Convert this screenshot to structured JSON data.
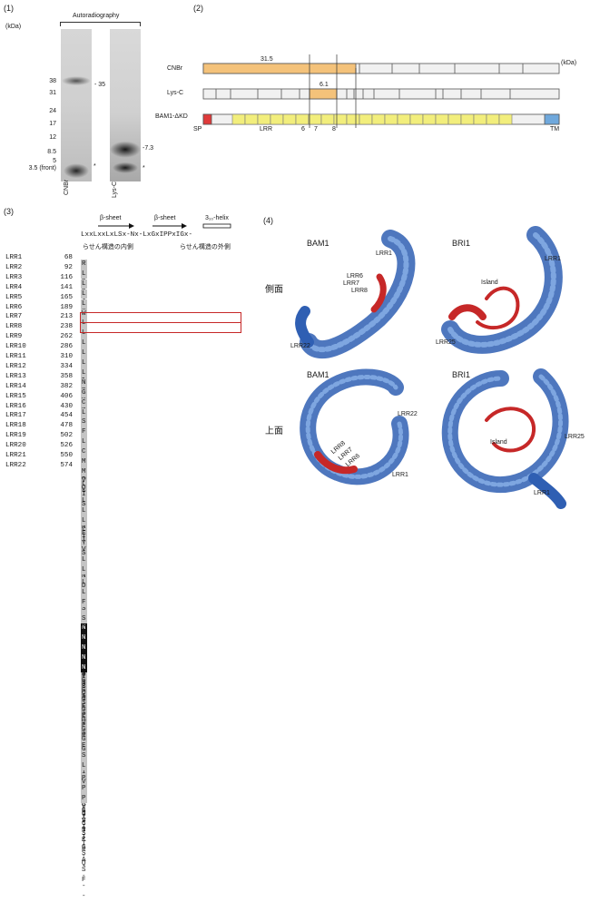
{
  "panel1": {
    "label": "(1)",
    "header": "Autoradiography",
    "unit": "(kDa)",
    "markers": [
      "38",
      "31",
      "24",
      "17",
      "12",
      "8.5",
      "5",
      "3.5 (front)"
    ],
    "lane_labels": [
      "CNBr",
      "Lys-C"
    ],
    "band_labels": [
      "35",
      "7.3"
    ],
    "asterisk": "*"
  },
  "panel2": {
    "label": "(2)",
    "unit": "(kDa)",
    "rows": [
      "CNBr",
      "Lys-C",
      "BAM1-ΔKD"
    ],
    "fragment_labels": [
      "31.5",
      "6.1"
    ],
    "domain_labels": [
      "SP",
      "LRR",
      "6",
      "7",
      "8",
      "TM"
    ],
    "colors": {
      "cnbr_fragment": "#f4c27a",
      "lrr": "#f2ee7c",
      "sp": "#e03a3a",
      "tm": "#6fa8dc",
      "bar": "#f1f1f1"
    }
  },
  "panel3": {
    "label": "(3)",
    "features": [
      "β-sheet",
      "β-sheet",
      "3₁₀-helix"
    ],
    "consensus": "LxxLxxLxLSx-Nx-LxGxIPPxIGx-",
    "jp_left": "らせん構造の内側",
    "jp_right": "らせん構造の外側",
    "rows": [
      {
        "name": "LRR1",
        "num": "68",
        "seq": "RRHVTSLDLSGLN-LSGTLSPDVSH--"
      },
      {
        "name": "LRR2",
        "num": "92",
        "seq": "LRLLQNLSLAE-NL-ISGPIPPEISS-"
      },
      {
        "name": "LRR3",
        "num": "116",
        "seq": "LSGLRHLNLSN-NV-FNGSFPDEISSG"
      },
      {
        "name": "LRR4",
        "num": "141",
        "seq": "LVNLRVLDVYN-NN-LTGDLPVSVTN-"
      },
      {
        "name": "LRR5",
        "num": "165",
        "seq": "LTQLRHLHLGG-NY-FAGKIPPSYGS-"
      },
      {
        "name": "LRR6",
        "num": "189",
        "seq": "WPVIEYLAVSG-NE-LVGKIPPEIGN-"
      },
      {
        "name": "LRR7",
        "num": "213",
        "seq": "LTTLRELYIGYYNAFEDG-LPPEIGN-"
      },
      {
        "name": "LRR8",
        "num": "238",
        "seq": "LSELVRFD-GA-NCGLTGEIPPEIGK-"
      },
      {
        "name": "LRR9",
        "num": "262",
        "seq": "LQKLDTLFLQV-NV-FSGPLTWELGT-"
      },
      {
        "name": "LRR10",
        "num": "286",
        "seq": "LSSLKSMDLSN-NM-FTGEIPASFAE-"
      },
      {
        "name": "LRR11",
        "num": "310",
        "seq": "LKNLTLLNLFR-NK-LHGEIPEFIGD-"
      },
      {
        "name": "LRR12",
        "num": "334",
        "seq": "LPELEVLQLWE-NN-FTGSIPQKLGE-"
      },
      {
        "name": "LRR13",
        "num": "358",
        "seq": "NGKLNLVDLSS-NK-LTGTLPPNMCS-"
      },
      {
        "name": "LRR14",
        "num": "382",
        "seq": "GNKLETLITLG-NF-LFGSIPDSLGK-"
      },
      {
        "name": "LRR15",
        "num": "406",
        "seq": "CESLTRIRMGE-NF-LNGSIPKGLFG-"
      },
      {
        "name": "LRR16",
        "num": "430",
        "seq": "LPKLTQVELQD-NY-LSGELPVAGGV-"
      },
      {
        "name": "LRR17",
        "num": "454",
        "seq": "SVNLGQISLSN-NQ-LSGPLPPAIGN-"
      },
      {
        "name": "LRR18",
        "num": "478",
        "seq": "FTGVQKLLLDG-NK-FQGPIPSEVGK-"
      },
      {
        "name": "LRR19",
        "num": "502",
        "seq": "LQQLSKIDFSH-NL-FSGRIAPEISR-"
      },
      {
        "name": "LRR20",
        "num": "526",
        "seq": "CKLLTFVDLSR-NE-LSGEIPNEITA-"
      },
      {
        "name": "LRR21",
        "num": "550",
        "seq": "MKILNYLNLSR-NH-LVGSIPGSISS-"
      },
      {
        "name": "LRR22",
        "num": "574",
        "seq": "MQSLTSLDFSY-NN-LSGLVPGTGQF-"
      }
    ]
  },
  "panel4": {
    "label": "(4)",
    "side_label": "側面",
    "top_label": "上面",
    "structures": [
      "BAM1",
      "BRI1",
      "BAM1",
      "BRI1"
    ],
    "annotations": [
      "LRR1",
      "LRR6",
      "LRR7",
      "LRR8",
      "LRR22",
      "LRR1",
      "Island",
      "LRR25",
      "LRR22",
      "LRR8",
      "LRR7",
      "LRR6",
      "LRR1",
      "Island",
      "LRR25",
      "LRR1"
    ],
    "colors": {
      "protein": "#2f5fb3",
      "highlight": "#c62828"
    }
  }
}
